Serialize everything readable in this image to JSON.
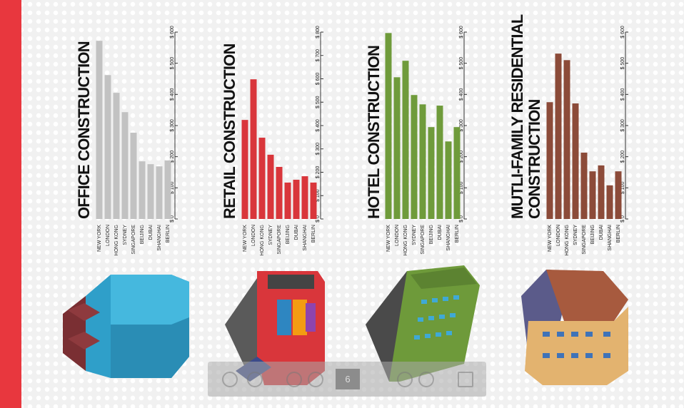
{
  "chart_data": [
    {
      "type": "bar",
      "title": "OFFICE CONSTRUCTION",
      "categories": [
        "NEW YORK",
        "LONDON",
        "HONG KONG",
        "SYDNEY",
        "SINGAPORE",
        "BEIJING",
        "DUBAI",
        "SHANGHAI",
        "BERLIN"
      ],
      "values": [
        572,
        462,
        405,
        343,
        277,
        185,
        176,
        169,
        188
      ],
      "color": "#c2c2c2",
      "ylim": [
        0,
        600
      ],
      "yticks": [
        {
          "value": 0,
          "label": "$ 0"
        },
        {
          "value": 100,
          "label": "$ 100"
        },
        {
          "value": 200,
          "label": "$ 200"
        },
        {
          "value": 300,
          "label": "$ 300"
        },
        {
          "value": 400,
          "label": "$ 400"
        },
        {
          "value": 500,
          "label": "$ 500"
        },
        {
          "value": 600,
          "label": "$ 600"
        }
      ]
    },
    {
      "type": "bar",
      "title": "RETAIL CONSTRUCTION",
      "categories": [
        "NEW YORK",
        "LONDON",
        "HONG KONG",
        "SYDNEY",
        "SINGAPORE",
        "BEIJING",
        "DUBAI",
        "SHANGHAI",
        "BERLIN"
      ],
      "values": [
        424,
        598,
        348,
        275,
        223,
        156,
        168,
        183,
        156
      ],
      "color": "#d9363b",
      "ylim": [
        0,
        800
      ],
      "yticks": [
        {
          "value": 0,
          "label": "$ 0"
        },
        {
          "value": 100,
          "label": "$ 100"
        },
        {
          "value": 200,
          "label": "$ 200"
        },
        {
          "value": 300,
          "label": "$ 300"
        },
        {
          "value": 400,
          "label": "$ 400"
        },
        {
          "value": 500,
          "label": "$ 500"
        },
        {
          "value": 600,
          "label": "$ 600"
        },
        {
          "value": 700,
          "label": "$ 700"
        },
        {
          "value": 800,
          "label": "$ 800"
        }
      ]
    },
    {
      "type": "bar",
      "title": "HOTEL CONSTRUCTION",
      "categories": [
        "NEW YORK",
        "LONDON",
        "HONG KONG",
        "SYDNEY",
        "SINGAPORE",
        "BEIJING",
        "DUBAI",
        "SHANGHAI",
        "BERLIN"
      ],
      "values": [
        597,
        455,
        508,
        398,
        368,
        295,
        364,
        249,
        295
      ],
      "color": "#6f9b3b",
      "ylim": [
        0,
        600
      ],
      "yticks": [
        {
          "value": 0,
          "label": "$ 0"
        },
        {
          "value": 100,
          "label": "$ 100"
        },
        {
          "value": 200,
          "label": "$ 200"
        },
        {
          "value": 300,
          "label": "$ 300"
        },
        {
          "value": 400,
          "label": "$ 400"
        },
        {
          "value": 500,
          "label": "$ 500"
        },
        {
          "value": 600,
          "label": "$ 600"
        }
      ]
    },
    {
      "type": "bar",
      "title": "MUTLI-FAMILY RESIDENTIAL CONSTRUCTION",
      "categories": [
        "NEW YORK",
        "LONDON",
        "HONG KONG",
        "SYDNEY",
        "SINGAPORE",
        "BEIJING",
        "DUBAI",
        "SHANGHAI",
        "BERLIN"
      ],
      "values": [
        375,
        531,
        510,
        371,
        213,
        153,
        172,
        108,
        153
      ],
      "color": "#8c4b39",
      "ylim": [
        0,
        600
      ],
      "yticks": [
        {
          "value": 0,
          "label": "$ 0"
        },
        {
          "value": 100,
          "label": "$ 100"
        },
        {
          "value": 200,
          "label": "$ 200"
        },
        {
          "value": 300,
          "label": "$ 300"
        },
        {
          "value": 400,
          "label": "$ 400"
        },
        {
          "value": 500,
          "label": "$ 500"
        },
        {
          "value": 600,
          "label": "$ 600"
        }
      ]
    }
  ],
  "toolbar": {
    "page": "6"
  }
}
